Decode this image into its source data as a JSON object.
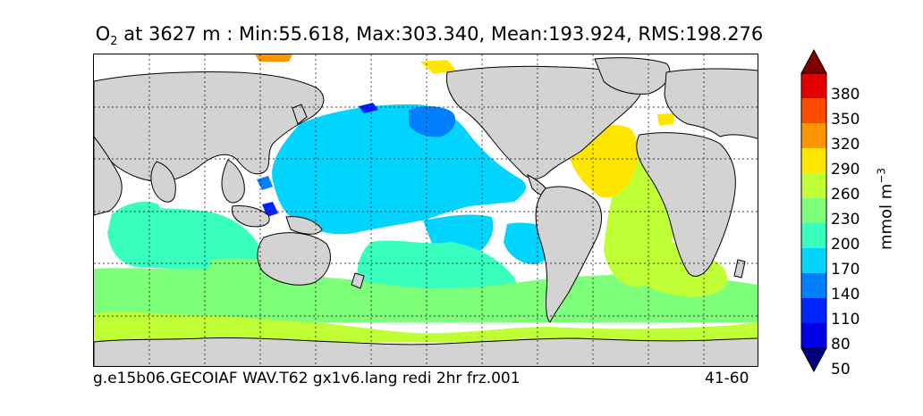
{
  "title": {
    "prefix": "O",
    "subscript": "2",
    "main": " at 3627 m : Min:55.618, Max:303.340, Mean:193.924, RMS:198.276"
  },
  "footer": {
    "run_name": "g.e15b06.GECOIAF WAV.T62 gx1v6.lang redi 2hr frz.001",
    "years": "41-60"
  },
  "colorbar": {
    "unit_base": "mmol m",
    "unit_exponent": "−3",
    "labels": [
      "380",
      "350",
      "320",
      "290",
      "260",
      "230",
      "200",
      "170",
      "140",
      "110",
      "80",
      "50"
    ],
    "colors_top_to_bottom": [
      "#800000",
      "#e40000",
      "#ff4a00",
      "#ff9600",
      "#ffe600",
      "#c0ff36",
      "#7dff7a",
      "#39ffbe",
      "#00d4ff",
      "#0080ff",
      "#0024ff",
      "#0000e4",
      "#00007f"
    ]
  },
  "map": {
    "land_color": "#d3d3d3",
    "ocean_background": "#ffffff",
    "grid": true
  }
}
